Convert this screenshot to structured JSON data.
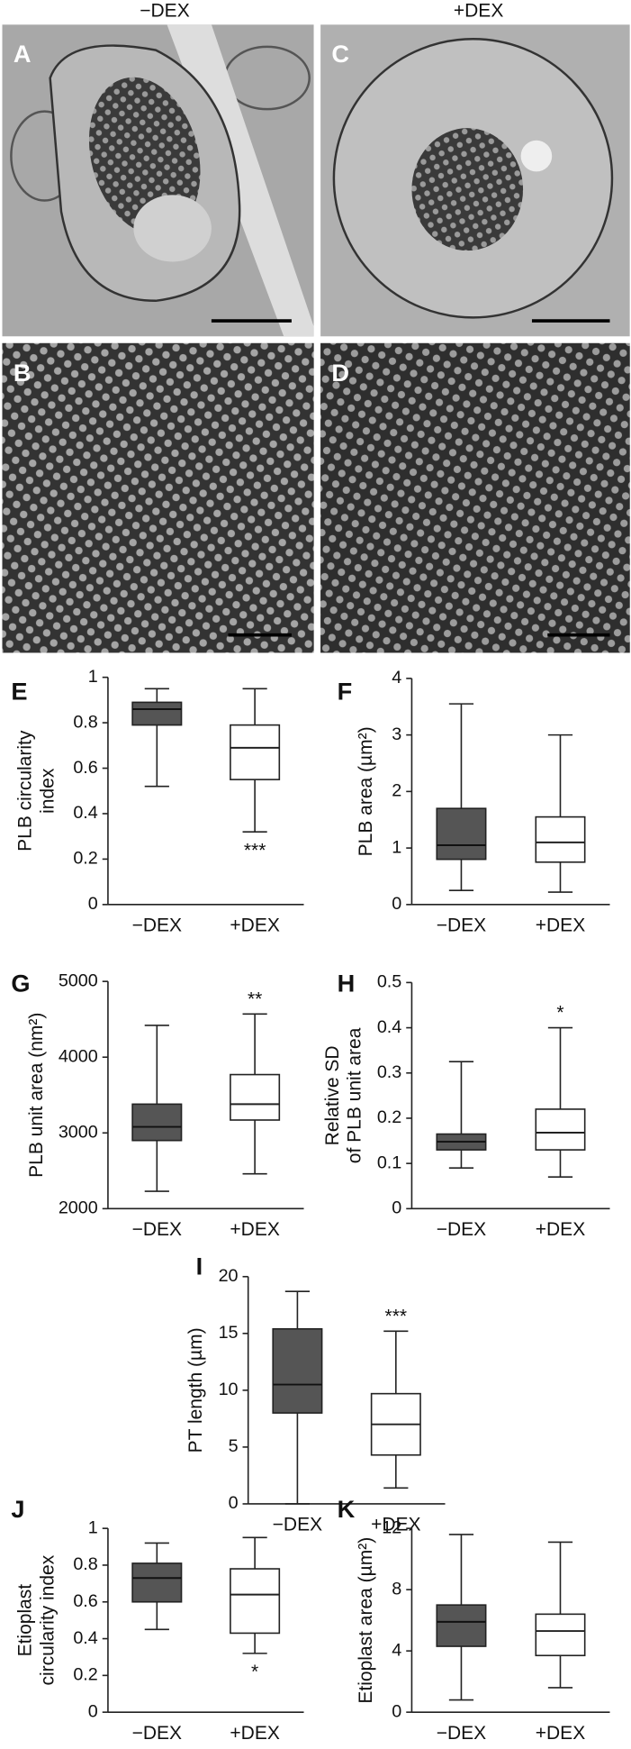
{
  "micrographs": {
    "columns": [
      "−DEX",
      "+DEX"
    ],
    "panels": [
      "A",
      "B",
      "C",
      "D"
    ]
  },
  "chart_data": [
    {
      "type": "box",
      "panel": "E",
      "ylabel": [
        "PLB circularity",
        "index"
      ],
      "categories": [
        "−DEX",
        "+DEX"
      ],
      "boxes": [
        {
          "min": 0.52,
          "q1": 0.79,
          "median": 0.86,
          "q3": 0.89,
          "max": 0.95,
          "color": "#555555"
        },
        {
          "min": 0.32,
          "q1": 0.55,
          "median": 0.69,
          "q3": 0.79,
          "max": 0.95,
          "color": "#ffffff"
        }
      ],
      "annotations": [
        {
          "category": 1,
          "text": "***",
          "position": "below"
        }
      ],
      "ylim": [
        0,
        1
      ],
      "yticks": [
        0,
        0.2,
        0.4,
        0.6,
        0.8,
        1
      ]
    },
    {
      "type": "box",
      "panel": "F",
      "ylabel": [
        "PLB area (µm²)"
      ],
      "categories": [
        "−DEX",
        "+DEX"
      ],
      "boxes": [
        {
          "min": 0.25,
          "q1": 0.8,
          "median": 1.05,
          "q3": 1.7,
          "max": 3.55,
          "color": "#555555"
        },
        {
          "min": 0.22,
          "q1": 0.75,
          "median": 1.1,
          "q3": 1.55,
          "max": 3.0,
          "color": "#ffffff"
        }
      ],
      "annotations": [],
      "ylim": [
        0,
        4
      ],
      "yticks": [
        0,
        1,
        2,
        3,
        4
      ]
    },
    {
      "type": "box",
      "panel": "G",
      "ylabel": [
        "PLB unit area (nm²)"
      ],
      "categories": [
        "−DEX",
        "+DEX"
      ],
      "boxes": [
        {
          "min": 2230,
          "q1": 2900,
          "median": 3080,
          "q3": 3380,
          "max": 4420,
          "color": "#555555"
        },
        {
          "min": 2460,
          "q1": 3170,
          "median": 3380,
          "q3": 3770,
          "max": 4570,
          "color": "#ffffff"
        }
      ],
      "annotations": [
        {
          "category": 1,
          "text": "**",
          "position": "above"
        }
      ],
      "ylim": [
        2000,
        5000
      ],
      "yticks": [
        2000,
        3000,
        4000,
        5000
      ]
    },
    {
      "type": "box",
      "panel": "H",
      "ylabel": [
        "Relative SD",
        "of PLB unit area"
      ],
      "categories": [
        "−DEX",
        "+DEX"
      ],
      "boxes": [
        {
          "min": 0.09,
          "q1": 0.13,
          "median": 0.148,
          "q3": 0.165,
          "max": 0.325,
          "color": "#555555"
        },
        {
          "min": 0.07,
          "q1": 0.13,
          "median": 0.168,
          "q3": 0.22,
          "max": 0.4,
          "color": "#ffffff"
        }
      ],
      "annotations": [
        {
          "category": 1,
          "text": "*",
          "position": "above"
        }
      ],
      "ylim": [
        0,
        0.5
      ],
      "yticks": [
        0,
        0.1,
        0.2,
        0.3,
        0.4,
        0.5
      ]
    },
    {
      "type": "box",
      "panel": "I",
      "ylabel": [
        "PT length (µm)"
      ],
      "categories": [
        "−DEX",
        "+DEX"
      ],
      "boxes": [
        {
          "min": 0,
          "q1": 8,
          "median": 10.5,
          "q3": 15.4,
          "max": 18.7,
          "color": "#555555"
        },
        {
          "min": 1.4,
          "q1": 4.3,
          "median": 7,
          "q3": 9.7,
          "max": 15.2,
          "color": "#ffffff"
        }
      ],
      "annotations": [
        {
          "category": 1,
          "text": "***",
          "position": "above"
        }
      ],
      "ylim": [
        0,
        20
      ],
      "yticks": [
        0,
        5,
        10,
        15,
        20
      ]
    },
    {
      "type": "box",
      "panel": "J",
      "ylabel": [
        "Etioplast",
        "circularity index"
      ],
      "categories": [
        "−DEX",
        "+DEX"
      ],
      "boxes": [
        {
          "min": 0.45,
          "q1": 0.6,
          "median": 0.73,
          "q3": 0.81,
          "max": 0.92,
          "color": "#555555"
        },
        {
          "min": 0.32,
          "q1": 0.43,
          "median": 0.64,
          "q3": 0.78,
          "max": 0.95,
          "color": "#ffffff"
        }
      ],
      "annotations": [
        {
          "category": 1,
          "text": "*",
          "position": "below"
        }
      ],
      "ylim": [
        0,
        1
      ],
      "yticks": [
        0,
        0.2,
        0.4,
        0.6,
        0.8,
        1
      ]
    },
    {
      "type": "box",
      "panel": "K",
      "ylabel": [
        "Etioplast area (µm²)"
      ],
      "categories": [
        "−DEX",
        "+DEX"
      ],
      "boxes": [
        {
          "min": 0.8,
          "q1": 4.3,
          "median": 5.9,
          "q3": 7,
          "max": 11.6,
          "color": "#555555"
        },
        {
          "min": 1.6,
          "q1": 3.7,
          "median": 5.3,
          "q3": 6.4,
          "max": 11.1,
          "color": "#ffffff"
        }
      ],
      "annotations": [],
      "ylim": [
        0,
        12
      ],
      "yticks": [
        0,
        4,
        8,
        12
      ]
    }
  ]
}
